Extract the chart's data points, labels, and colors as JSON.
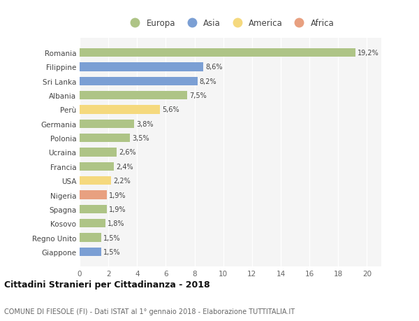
{
  "categories": [
    "Giappone",
    "Regno Unito",
    "Kosovo",
    "Spagna",
    "Nigeria",
    "USA",
    "Francia",
    "Ucraina",
    "Polonia",
    "Germania",
    "Perù",
    "Albania",
    "Sri Lanka",
    "Filippine",
    "Romania"
  ],
  "values": [
    1.5,
    1.5,
    1.8,
    1.9,
    1.9,
    2.2,
    2.4,
    2.6,
    3.5,
    3.8,
    5.6,
    7.5,
    8.2,
    8.6,
    19.2
  ],
  "labels": [
    "1,5%",
    "1,5%",
    "1,8%",
    "1,9%",
    "1,9%",
    "2,2%",
    "2,4%",
    "2,6%",
    "3,5%",
    "3,8%",
    "5,6%",
    "7,5%",
    "8,2%",
    "8,6%",
    "19,2%"
  ],
  "continents": [
    "Asia",
    "Europa",
    "Europa",
    "Europa",
    "Africa",
    "America",
    "Europa",
    "Europa",
    "Europa",
    "Europa",
    "America",
    "Europa",
    "Asia",
    "Asia",
    "Europa"
  ],
  "colors": {
    "Europa": "#aec486",
    "Asia": "#7b9fd4",
    "America": "#f5d97e",
    "Africa": "#e8a080"
  },
  "legend_items": [
    "Europa",
    "Asia",
    "America",
    "Africa"
  ],
  "title": "Cittadini Stranieri per Cittadinanza - 2018",
  "subtitle": "COMUNE DI FIESOLE (FI) - Dati ISTAT al 1° gennaio 2018 - Elaborazione TUTTITALIA.IT",
  "xlim": [
    0,
    21
  ],
  "xticks": [
    0,
    2,
    4,
    6,
    8,
    10,
    12,
    14,
    16,
    18,
    20
  ],
  "background_color": "#ffffff",
  "plot_bg_color": "#f5f5f5",
  "grid_color": "#ffffff"
}
